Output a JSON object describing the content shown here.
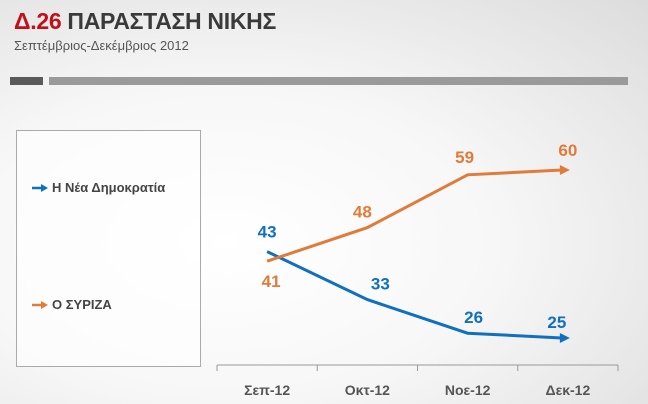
{
  "header": {
    "title_number": "Δ.26",
    "title_text": "ΠΑΡΑΣΤΑΣΗ ΝΙΚΗΣ",
    "subtitle": "Σεπτέμβριος-Δεκέμβριος 2012"
  },
  "chart_data": {
    "type": "line",
    "title": "Δ.26 ΠΑΡΑΣΤΑΣΗ ΝΙΚΗΣ",
    "subtitle": "Σεπτέμβριος-Δεκέμβριος 2012",
    "categories": [
      "Σεπ-12",
      "Οκτ-12",
      "Νοε-12",
      "Δεκ-12"
    ],
    "series": [
      {
        "name": "Η Νέα Δημοκρατία",
        "color": "#1070c0",
        "values": [
          43,
          33,
          26,
          25
        ]
      },
      {
        "name": "Ο ΣΥΡΙΖΑ",
        "color": "#e07b39",
        "values": [
          41,
          48,
          59,
          60
        ]
      }
    ],
    "xlabel": "",
    "ylabel": "",
    "grid": false,
    "legend": "left",
    "data_labels": true
  }
}
